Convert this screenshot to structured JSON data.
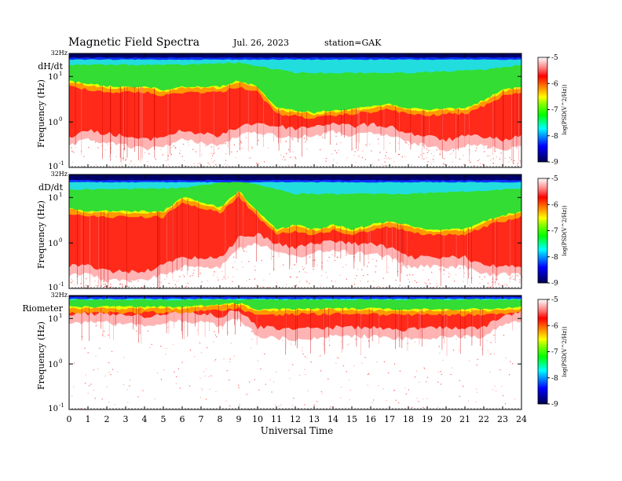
{
  "header": {
    "title": "Magnetic  Field  Spectra",
    "date": "Jul.  26, 2023",
    "station": "station=GAK"
  },
  "colorbar": {
    "ticks": [
      "-5",
      "-6",
      "-7",
      "-8",
      "-9"
    ],
    "label": "log(PSD(V^2/Hz))",
    "colors": [
      "#000050",
      "#0000ff",
      "#00ffff",
      "#00ff00",
      "#ffff00",
      "#ff8000",
      "#ff0000",
      "#ffffff"
    ]
  },
  "chart_data": {
    "type": "heatmap",
    "xlabel": "Universal Time",
    "xticks": [
      "0",
      "1",
      "2",
      "3",
      "4",
      "5",
      "6",
      "7",
      "8",
      "9",
      "10",
      "11",
      "12",
      "13",
      "14",
      "15",
      "16",
      "17",
      "18",
      "19",
      "20",
      "21",
      "22",
      "23",
      "24"
    ],
    "xlim": [
      0,
      24
    ],
    "ylim_hz": [
      0.1,
      32
    ],
    "yscale": "log",
    "colorscale_range": [
      -9,
      -5
    ],
    "panels": [
      {
        "name": "dH/dt",
        "ylabel": "Frequency (Hz)",
        "ytick_top": "32Hz",
        "ytick_mid1": "10",
        "ytick_mid1_exp": "1",
        "ytick_mid2": "10",
        "ytick_mid2_exp": "0",
        "ytick_bot": "10",
        "ytick_bot_exp": "-1",
        "red_edge_hz": [
          [
            0,
            0.3
          ],
          [
            1,
            0.4
          ],
          [
            2,
            0.35
          ],
          [
            3,
            0.3
          ],
          [
            4,
            0.25
          ],
          [
            5,
            0.3
          ],
          [
            6,
            0.4
          ],
          [
            7,
            0.35
          ],
          [
            8,
            0.3
          ],
          [
            9,
            0.5
          ],
          [
            10,
            0.6
          ],
          [
            11,
            0.5
          ],
          [
            12,
            0.45
          ],
          [
            13,
            0.5
          ],
          [
            14,
            0.6
          ],
          [
            15,
            0.5
          ],
          [
            16,
            0.55
          ],
          [
            17,
            0.5
          ],
          [
            18,
            0.35
          ],
          [
            19,
            0.3
          ],
          [
            20,
            0.25
          ],
          [
            21,
            0.3
          ],
          [
            22,
            0.3
          ],
          [
            23,
            0.25
          ],
          [
            24,
            0.3
          ]
        ],
        "green_edge_hz": [
          [
            0,
            8
          ],
          [
            1,
            7
          ],
          [
            2,
            6
          ],
          [
            3,
            6
          ],
          [
            4,
            6
          ],
          [
            5,
            5
          ],
          [
            6,
            6
          ],
          [
            7,
            6
          ],
          [
            8,
            6
          ],
          [
            9,
            8
          ],
          [
            10,
            6
          ],
          [
            11,
            2
          ],
          [
            12,
            1.8
          ],
          [
            13,
            1.6
          ],
          [
            14,
            1.8
          ],
          [
            15,
            2
          ],
          [
            16,
            2.2
          ],
          [
            17,
            2.5
          ],
          [
            18,
            2
          ],
          [
            19,
            1.8
          ],
          [
            20,
            2
          ],
          [
            21,
            2
          ],
          [
            22,
            3
          ],
          [
            23,
            5
          ],
          [
            24,
            6
          ]
        ],
        "cyan_edge_hz": [
          [
            0,
            18
          ],
          [
            6,
            18
          ],
          [
            9,
            20
          ],
          [
            12,
            12
          ],
          [
            18,
            12
          ],
          [
            22,
            14
          ],
          [
            24,
            18
          ]
        ],
        "blue_edge_hz": [
          [
            0,
            26
          ],
          [
            24,
            26
          ]
        ]
      },
      {
        "name": "dD/dt",
        "ylabel": "Frequency (Hz)",
        "ytick_top": "32Hz",
        "ytick_mid1": "10",
        "ytick_mid1_exp": "1",
        "ytick_mid2": "10",
        "ytick_mid2_exp": "0",
        "ytick_bot": "10",
        "ytick_bot_exp": "-1",
        "red_edge_hz": [
          [
            0,
            0.2
          ],
          [
            1,
            0.2
          ],
          [
            2,
            0.15
          ],
          [
            3,
            0.15
          ],
          [
            4,
            0.15
          ],
          [
            5,
            0.2
          ],
          [
            6,
            0.3
          ],
          [
            7,
            0.3
          ],
          [
            8,
            0.3
          ],
          [
            9,
            0.8
          ],
          [
            10,
            1
          ],
          [
            11,
            0.6
          ],
          [
            12,
            0.5
          ],
          [
            13,
            0.6
          ],
          [
            14,
            0.7
          ],
          [
            15,
            0.6
          ],
          [
            16,
            0.6
          ],
          [
            17,
            0.5
          ],
          [
            18,
            0.3
          ],
          [
            19,
            0.3
          ],
          [
            20,
            0.3
          ],
          [
            21,
            0.3
          ],
          [
            22,
            0.2
          ],
          [
            23,
            0.2
          ],
          [
            24,
            0.2
          ]
        ],
        "green_edge_hz": [
          [
            0,
            6
          ],
          [
            1,
            5
          ],
          [
            2,
            5
          ],
          [
            3,
            5
          ],
          [
            4,
            5
          ],
          [
            5,
            5
          ],
          [
            6,
            10
          ],
          [
            7,
            8
          ],
          [
            8,
            6
          ],
          [
            9,
            14
          ],
          [
            10,
            5
          ],
          [
            11,
            2
          ],
          [
            12,
            2.5
          ],
          [
            13,
            2
          ],
          [
            14,
            2.5
          ],
          [
            15,
            2
          ],
          [
            16,
            2.5
          ],
          [
            17,
            3
          ],
          [
            18,
            2.5
          ],
          [
            19,
            2
          ],
          [
            20,
            2
          ],
          [
            21,
            2
          ],
          [
            22,
            3
          ],
          [
            23,
            4
          ],
          [
            24,
            5
          ]
        ],
        "cyan_edge_hz": [
          [
            0,
            15
          ],
          [
            6,
            16
          ],
          [
            9,
            24
          ],
          [
            12,
            12
          ],
          [
            18,
            12
          ],
          [
            22,
            14
          ],
          [
            24,
            16
          ]
        ],
        "blue_edge_hz": [
          [
            0,
            24
          ],
          [
            24,
            24
          ]
        ]
      },
      {
        "name": "Riometer",
        "ylabel": "Frequency (Hz)",
        "ytick_top": "32Hz",
        "ytick_mid1": "10",
        "ytick_mid1_exp": "1",
        "ytick_mid2": "10",
        "ytick_mid2_exp": "0",
        "ytick_bot": "10",
        "ytick_bot_exp": "-1",
        "red_edge_hz": [
          [
            0,
            8
          ],
          [
            2,
            8
          ],
          [
            4,
            7
          ],
          [
            6,
            9
          ],
          [
            7,
            8
          ],
          [
            8,
            7
          ],
          [
            9,
            10
          ],
          [
            10,
            4
          ],
          [
            12,
            3.5
          ],
          [
            14,
            4
          ],
          [
            16,
            4
          ],
          [
            18,
            3.5
          ],
          [
            20,
            4
          ],
          [
            22,
            4
          ],
          [
            23,
            7
          ],
          [
            24,
            9
          ]
        ],
        "green_edge_hz": [
          [
            0,
            18
          ],
          [
            6,
            18
          ],
          [
            9,
            22
          ],
          [
            10,
            16
          ],
          [
            14,
            17
          ],
          [
            18,
            16
          ],
          [
            22,
            16
          ],
          [
            24,
            18
          ]
        ],
        "cyan_edge_hz": [
          [
            0,
            26
          ],
          [
            24,
            26
          ]
        ],
        "blue_edge_hz": [
          [
            0,
            30
          ],
          [
            24,
            30
          ]
        ]
      }
    ]
  }
}
